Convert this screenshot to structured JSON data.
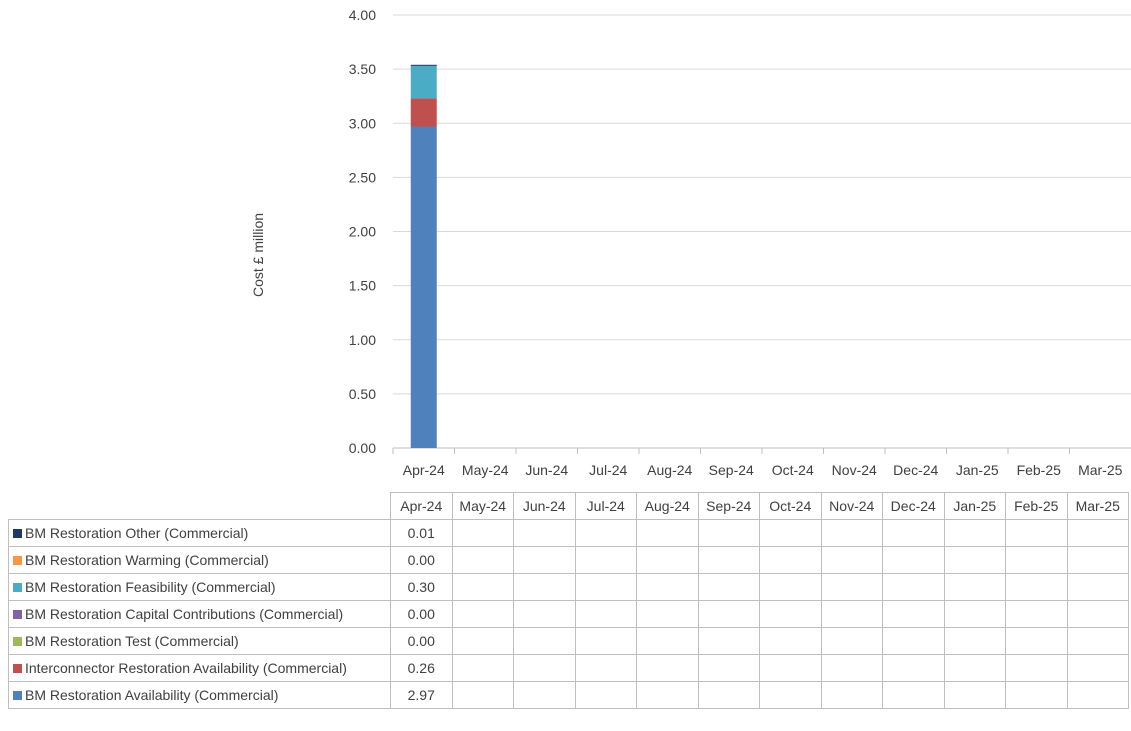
{
  "chart_data": {
    "type": "bar",
    "stacked": true,
    "ylabel": "Cost £ million",
    "ylim": [
      0,
      4
    ],
    "yticks": [
      "0.00",
      "0.50",
      "1.00",
      "1.50",
      "2.00",
      "2.50",
      "3.00",
      "3.50",
      "4.00"
    ],
    "categories": [
      "Apr-24",
      "May-24",
      "Jun-24",
      "Jul-24",
      "Aug-24",
      "Sep-24",
      "Oct-24",
      "Nov-24",
      "Dec-24",
      "Jan-25",
      "Feb-25",
      "Mar-25"
    ],
    "series": [
      {
        "name": "BM Restoration Availability (Commercial)",
        "color": "#4f81bd",
        "values": [
          2.97,
          null,
          null,
          null,
          null,
          null,
          null,
          null,
          null,
          null,
          null,
          null
        ],
        "labels": [
          "2.97",
          "",
          "",
          "",
          "",
          "",
          "",
          "",
          "",
          "",
          "",
          ""
        ]
      },
      {
        "name": "Interconnector Restoration Availability (Commercial)",
        "color": "#c0504d",
        "values": [
          0.26,
          null,
          null,
          null,
          null,
          null,
          null,
          null,
          null,
          null,
          null,
          null
        ],
        "labels": [
          "0.26",
          "",
          "",
          "",
          "",
          "",
          "",
          "",
          "",
          "",
          "",
          ""
        ]
      },
      {
        "name": "BM Restoration Test (Commercial)",
        "color": "#9bbb59",
        "values": [
          0.0,
          null,
          null,
          null,
          null,
          null,
          null,
          null,
          null,
          null,
          null,
          null
        ],
        "labels": [
          "0.00",
          "",
          "",
          "",
          "",
          "",
          "",
          "",
          "",
          "",
          "",
          ""
        ]
      },
      {
        "name": "BM Restoration Capital Contributions (Commercial)",
        "color": "#8064a2",
        "values": [
          0.0,
          null,
          null,
          null,
          null,
          null,
          null,
          null,
          null,
          null,
          null,
          null
        ],
        "labels": [
          "0.00",
          "",
          "",
          "",
          "",
          "",
          "",
          "",
          "",
          "",
          "",
          ""
        ]
      },
      {
        "name": "BM Restoration Feasibility (Commercial)",
        "color": "#4bacc6",
        "values": [
          0.3,
          null,
          null,
          null,
          null,
          null,
          null,
          null,
          null,
          null,
          null,
          null
        ],
        "labels": [
          "0.30",
          "",
          "",
          "",
          "",
          "",
          "",
          "",
          "",
          "",
          "",
          ""
        ]
      },
      {
        "name": "BM Restoration Warming (Commercial)",
        "color": "#f79646",
        "values": [
          0.0,
          null,
          null,
          null,
          null,
          null,
          null,
          null,
          null,
          null,
          null,
          null
        ],
        "labels": [
          "0.00",
          "",
          "",
          "",
          "",
          "",
          "",
          "",
          "",
          "",
          "",
          ""
        ]
      },
      {
        "name": "BM Restoration Other (Commercial)",
        "color": "#1f3864",
        "values": [
          0.01,
          null,
          null,
          null,
          null,
          null,
          null,
          null,
          null,
          null,
          null,
          null
        ],
        "labels": [
          "0.01",
          "",
          "",
          "",
          "",
          "",
          "",
          "",
          "",
          "",
          "",
          ""
        ]
      }
    ],
    "table_order": [
      6,
      5,
      4,
      3,
      2,
      1,
      0
    ],
    "grid": true,
    "legend": "data-table"
  }
}
